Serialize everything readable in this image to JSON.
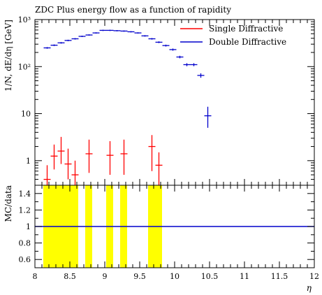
{
  "chart_data": {
    "type": "scatter",
    "title": "ZDC Plus energy flow as a function of rapidity",
    "xlabel": "η",
    "ylabel": "1/N, dE/dη [GeV]",
    "ratio_ylabel": "MC/data",
    "xlim": [
      8,
      12
    ],
    "ylim": [
      0.3,
      1000
    ],
    "yscale": "log",
    "ratio_ylim": [
      0.5,
      1.5
    ],
    "x_ticks": [
      "8",
      "8.5",
      "9",
      "9.5",
      "10",
      "10.5",
      "11",
      "11.5",
      "12"
    ],
    "y_ticks": [
      "1",
      "10",
      "10²",
      "10³"
    ],
    "ratio_ticks": [
      "0.6",
      "0.8",
      "1",
      "1.2",
      "1.4"
    ],
    "legend_position": "top-right",
    "series": [
      {
        "name": "Single Diffractive",
        "color": "#ff0000",
        "points": [
          {
            "x": 8.175,
            "y": 0.4,
            "err_lo": 0.25,
            "err_hi": 0.8
          },
          {
            "x": 8.275,
            "y": 1.25,
            "err_lo": 0.65,
            "err_hi": 2.2
          },
          {
            "x": 8.375,
            "y": 1.6,
            "err_lo": 0.85,
            "err_hi": 3.2
          },
          {
            "x": 8.475,
            "y": 0.85,
            "err_lo": 0.4,
            "err_hi": 1.8
          },
          {
            "x": 8.575,
            "y": 0.5,
            "err_lo": 0.28,
            "err_hi": 1.0
          },
          {
            "x": 8.775,
            "y": 1.4,
            "err_lo": 0.55,
            "err_hi": 2.8
          },
          {
            "x": 9.075,
            "y": 1.3,
            "err_lo": 0.5,
            "err_hi": 2.6
          },
          {
            "x": 9.275,
            "y": 1.4,
            "err_lo": 0.5,
            "err_hi": 2.8
          },
          {
            "x": 9.675,
            "y": 2.0,
            "err_lo": 0.6,
            "err_hi": 3.5
          },
          {
            "x": 9.775,
            "y": 0.8,
            "err_lo": 0.3,
            "err_hi": 1.5
          }
        ]
      },
      {
        "name": "Double Diffractive",
        "color": "#0000cc",
        "points": [
          {
            "x": 8.175,
            "y": 250,
            "err_lo": 240,
            "err_hi": 260
          },
          {
            "x": 8.275,
            "y": 285,
            "err_lo": 274,
            "err_hi": 296
          },
          {
            "x": 8.375,
            "y": 320,
            "err_lo": 308,
            "err_hi": 332
          },
          {
            "x": 8.475,
            "y": 360,
            "err_lo": 347,
            "err_hi": 373
          },
          {
            "x": 8.575,
            "y": 390,
            "err_lo": 376,
            "err_hi": 404
          },
          {
            "x": 8.675,
            "y": 440,
            "err_lo": 425,
            "err_hi": 455
          },
          {
            "x": 8.775,
            "y": 470,
            "err_lo": 455,
            "err_hi": 485
          },
          {
            "x": 8.875,
            "y": 520,
            "err_lo": 504,
            "err_hi": 536
          },
          {
            "x": 8.975,
            "y": 590,
            "err_lo": 572,
            "err_hi": 608
          },
          {
            "x": 9.075,
            "y": 590,
            "err_lo": 572,
            "err_hi": 608
          },
          {
            "x": 9.175,
            "y": 580,
            "err_lo": 562,
            "err_hi": 598
          },
          {
            "x": 9.275,
            "y": 570,
            "err_lo": 552,
            "err_hi": 588
          },
          {
            "x": 9.375,
            "y": 550,
            "err_lo": 533,
            "err_hi": 567
          },
          {
            "x": 9.475,
            "y": 520,
            "err_lo": 504,
            "err_hi": 536
          },
          {
            "x": 9.575,
            "y": 450,
            "err_lo": 434,
            "err_hi": 466
          },
          {
            "x": 9.675,
            "y": 390,
            "err_lo": 375,
            "err_hi": 405
          },
          {
            "x": 9.775,
            "y": 330,
            "err_lo": 316,
            "err_hi": 344
          },
          {
            "x": 9.875,
            "y": 280,
            "err_lo": 267,
            "err_hi": 293
          },
          {
            "x": 9.975,
            "y": 230,
            "err_lo": 218,
            "err_hi": 242
          },
          {
            "x": 10.075,
            "y": 160,
            "err_lo": 150,
            "err_hi": 170
          },
          {
            "x": 10.175,
            "y": 110,
            "err_lo": 102,
            "err_hi": 118
          },
          {
            "x": 10.275,
            "y": 110,
            "err_lo": 102,
            "err_hi": 118
          },
          {
            "x": 10.375,
            "y": 65,
            "err_lo": 58,
            "err_hi": 72
          },
          {
            "x": 10.475,
            "y": 9,
            "err_lo": 5,
            "err_hi": 14
          }
        ]
      }
    ],
    "ratio": {
      "line_y": 1.0,
      "line_color": "#0000cc",
      "band_color": "#ffff00",
      "bands": [
        {
          "x0": 8.12,
          "x1": 8.62
        },
        {
          "x0": 8.72,
          "x1": 8.82
        },
        {
          "x0": 9.02,
          "x1": 9.12
        },
        {
          "x0": 9.22,
          "x1": 9.32
        },
        {
          "x0": 9.62,
          "x1": 9.82
        }
      ]
    }
  }
}
